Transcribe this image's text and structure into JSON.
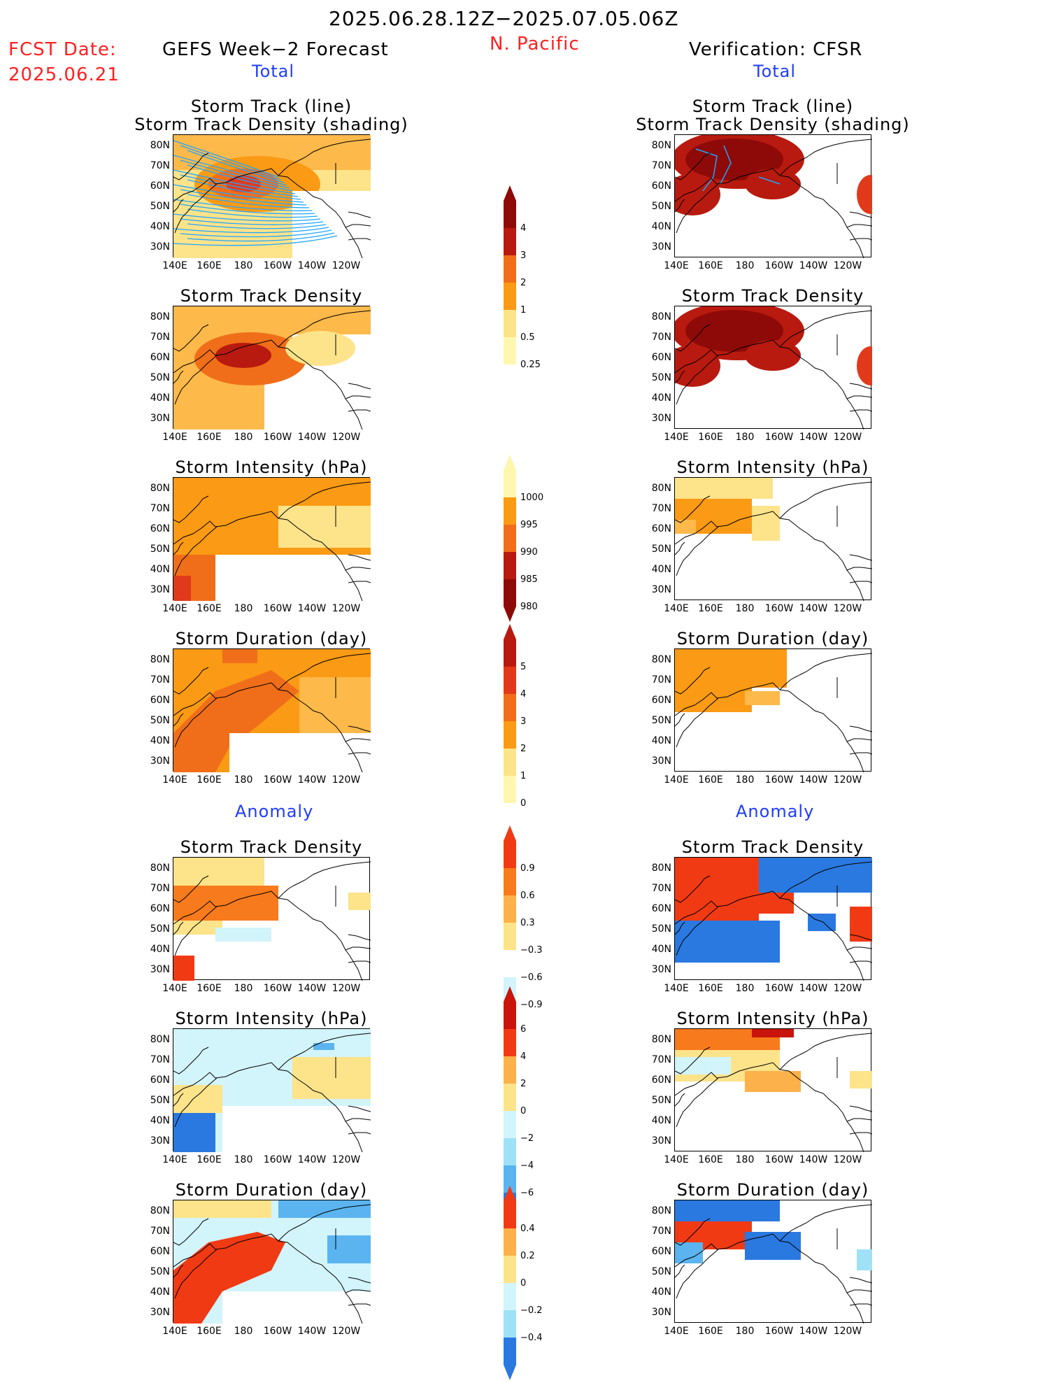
{
  "header": {
    "period": "2025.06.28.12Z−2025.07.05.06Z",
    "fcst_label": "FCST Date:",
    "fcst_date": "2025.06.21",
    "left_title": "GEFS Week−2 Forecast",
    "region": "N. Pacific",
    "right_title": "Verification: CFSR",
    "total_left": "Total",
    "total_right": "Total",
    "anomaly_left": "Anomaly",
    "anomaly_right": "Anomaly"
  },
  "panel_titles": {
    "track_line": "Storm Track (line)",
    "track_shading": "Storm Track Density (shading)",
    "density": "Storm Track Density",
    "intensity": "Storm Intensity (hPa)",
    "duration": "Storm Duration (day)"
  },
  "axes": {
    "lat_ticks": [
      "80N",
      "70N",
      "60N",
      "50N",
      "40N",
      "30N"
    ],
    "lon_ticks": [
      "140E",
      "160E",
      "180",
      "160W",
      "140W",
      "120W"
    ]
  },
  "colorbars": {
    "density_total": [
      "4",
      "3",
      "2",
      "1",
      "0.5",
      "0.25"
    ],
    "intensity_total": [
      "1000",
      "995",
      "990",
      "985",
      "980"
    ],
    "duration_total": [
      "5",
      "4",
      "3",
      "2",
      "1",
      "0"
    ],
    "density_anom": [
      "0.9",
      "0.6",
      "0.3",
      "−0.3",
      "−0.6",
      "−0.9"
    ],
    "intensity_anom": [
      "6",
      "4",
      "2",
      "0",
      "−2",
      "−4",
      "−6"
    ],
    "duration_anom": [
      "0.4",
      "0.2",
      "0",
      "−0.2",
      "−0.4"
    ]
  },
  "colors": {
    "total_scale": [
      "#fff7b0",
      "#fde38a",
      "#fdb94a",
      "#fb9a14",
      "#f06e19",
      "#e13a1a",
      "#b81a0f",
      "#8e0a08"
    ],
    "anom_warm": [
      "#fde38a",
      "#fdb14a",
      "#f77a1c",
      "#f03a14",
      "#c8140a"
    ],
    "anom_cool": [
      "#d2f4fb",
      "#9fe2f7",
      "#5bb4f0",
      "#2a79e0",
      "#1656cf"
    ],
    "title_blue": "#1f3cff",
    "header_red": "#ff2020",
    "track_line": "#1ea6ff"
  }
}
